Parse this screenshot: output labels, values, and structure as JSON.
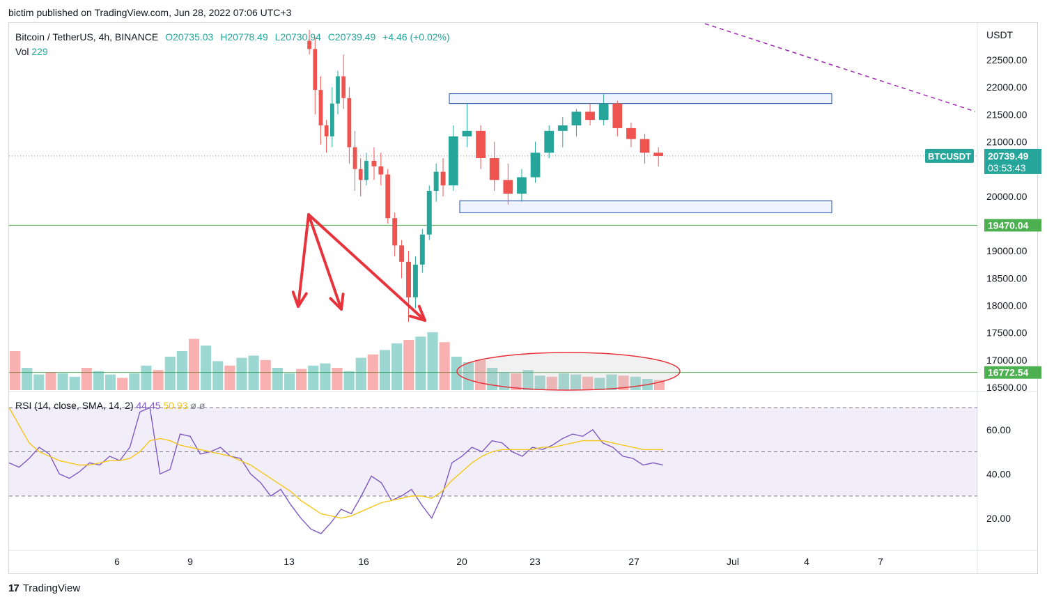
{
  "header": {
    "published": "bictim published on TradingView.com, Jun 28, 2022 07:06 UTC+3"
  },
  "legend": {
    "symbol": "Bitcoin / TetherUS, 4h, BINANCE",
    "open": "O20735.03",
    "high": "H20778.49",
    "low": "L20730.94",
    "close": "C20739.49",
    "change": "+4.46 (+0.02%)",
    "vol_label": "Vol",
    "vol_value": "229"
  },
  "rsi_legend": {
    "label": "RSI (14, close, SMA, 14, 2)",
    "rsi": "44.45",
    "sma": "50.93",
    "extra1": "ø",
    "extra2": "ø"
  },
  "footer": {
    "brand": "TradingView",
    "brand_mark": "17"
  },
  "colors": {
    "up": "#26a69a",
    "down": "#ef5350",
    "rsi": "#7e57c2",
    "sma": "#f5c518",
    "annotation": "#e8333c",
    "level": "#4caf50"
  },
  "chart_data": [
    {
      "type": "candlestick",
      "currency_label": "USDT",
      "y_ticks": [
        "22500.00",
        "22000.00",
        "21500.00",
        "21000.00",
        "20000.00",
        "19000.00",
        "18500.00",
        "18000.00",
        "17500.00",
        "17000.00",
        "16500.00"
      ],
      "ylim": [
        16450,
        23100
      ],
      "x_ticks": [
        "6",
        "9",
        "13",
        "16",
        "20",
        "23",
        "27",
        "Jul",
        "4",
        "7"
      ],
      "last_price": {
        "symbol": "BTCUSDT",
        "price": "20739.49",
        "countdown": "03:53:43",
        "value": 20739.49
      },
      "levels": [
        {
          "label": "19470.04",
          "value": 19470.04
        },
        {
          "label": "16772.54",
          "value": 16772.54
        }
      ],
      "zones": [
        {
          "name": "resistance-zone",
          "from": 21700,
          "to": 21880
        },
        {
          "name": "support-zone",
          "from": 19700,
          "to": 19920
        }
      ],
      "series": [
        {
          "values": [
            [
              22850,
              23050,
              22600,
              22700
            ],
            [
              22700,
              22900,
              21500,
              21950
            ],
            [
              21950,
              22200,
              20950,
              21300
            ],
            [
              21300,
              21400,
              20800,
              21100
            ],
            [
              21100,
              22000,
              20900,
              21700
            ],
            [
              21700,
              22300,
              21500,
              22200
            ],
            [
              22200,
              22600,
              21600,
              21800
            ],
            [
              21800,
              22000,
              20600,
              20900
            ],
            [
              20900,
              21200,
              20100,
              20500
            ],
            [
              20500,
              20700,
              20000,
              20300
            ],
            [
              20300,
              20800,
              20200,
              20650
            ]
          ]
        },
        {
          "values": [
            [
              20650,
              20900,
              20300,
              20550
            ],
            [
              20550,
              20800,
              20200,
              20400
            ],
            [
              20400,
              20500,
              19500,
              19600
            ],
            [
              19600,
              19700,
              18900,
              19100
            ],
            [
              19100,
              19200,
              18500,
              18800
            ],
            [
              18800,
              19000,
              17700,
              18150
            ],
            [
              18150,
              18900,
              17950,
              18750
            ],
            [
              18750,
              19400,
              18600,
              19300
            ],
            [
              19300,
              20200,
              19200,
              20100
            ],
            [
              20100,
              20600,
              19900,
              20450
            ],
            [
              20450,
              20700,
              20000,
              20200
            ]
          ]
        },
        {
          "values": [
            [
              20200,
              21300,
              20100,
              21100
            ],
            [
              21100,
              21700,
              20900,
              21200
            ],
            [
              21200,
              21300,
              20500,
              20700
            ],
            [
              20700,
              21000,
              20100,
              20300
            ],
            [
              20300,
              20600,
              19850,
              20050
            ],
            [
              20050,
              20500,
              19900,
              20350
            ],
            [
              20350,
              21000,
              20250,
              20800
            ],
            [
              20800,
              21300,
              20700,
              21200
            ],
            [
              21200,
              21450,
              20900,
              21300
            ],
            [
              21300,
              21600,
              21100,
              21550
            ],
            [
              21550,
              21700,
              21300,
              21400
            ],
            [
              21400,
              21880,
              21300,
              21700
            ],
            [
              21700,
              21750,
              21100,
              21250
            ],
            [
              21250,
              21350,
              20900,
              21050
            ],
            [
              21050,
              21150,
              20600,
              20800
            ],
            [
              20800,
              20900,
              20550,
              20739
            ]
          ]
        }
      ],
      "volume": [
        70,
        40,
        28,
        32,
        30,
        24,
        40,
        34,
        28,
        22,
        30,
        44,
        36,
        60,
        70,
        92,
        80,
        52,
        44,
        58,
        62,
        54,
        40,
        30,
        38,
        44,
        48,
        40,
        34,
        58,
        64,
        72,
        84,
        90,
        96,
        104,
        86,
        60,
        50,
        54,
        40,
        32,
        30,
        36,
        26,
        24,
        30,
        28,
        24,
        22,
        28,
        26,
        24,
        20,
        18
      ]
    },
    {
      "type": "line",
      "name": "RSI",
      "y_ticks": [
        "60.00",
        "40.00",
        "20.00"
      ],
      "ylim": [
        5,
        75
      ],
      "bands": [
        30,
        50,
        70
      ],
      "series": [
        {
          "name": "RSI",
          "values": [
            45,
            43,
            47,
            52,
            49,
            40,
            38,
            41,
            45,
            44,
            48,
            46,
            52,
            68,
            70,
            40,
            42,
            58,
            57,
            49,
            50,
            52,
            48,
            47,
            40,
            36,
            30,
            33,
            26,
            20,
            15,
            13,
            18,
            24,
            22,
            30,
            39,
            36,
            28,
            30,
            33,
            26,
            20,
            30,
            45,
            48,
            52,
            50,
            55,
            54,
            50,
            48,
            52,
            51,
            53,
            56,
            58,
            57,
            60,
            54,
            52,
            48,
            47,
            44,
            45,
            44
          ]
        },
        {
          "name": "SMA",
          "values": [
            70,
            62,
            54,
            50,
            48,
            46,
            45,
            44,
            44,
            45,
            46,
            46,
            47,
            50,
            55,
            56,
            55,
            53,
            52,
            51,
            50,
            49,
            48,
            46,
            44,
            41,
            38,
            35,
            32,
            28,
            25,
            22,
            21,
            20,
            21,
            23,
            25,
            27,
            28,
            29,
            30,
            30,
            29,
            32,
            37,
            41,
            45,
            48,
            50,
            51,
            51,
            51,
            51,
            52,
            52,
            53,
            54,
            55,
            55,
            55,
            54,
            53,
            52,
            51,
            51,
            50.93
          ]
        }
      ]
    }
  ]
}
